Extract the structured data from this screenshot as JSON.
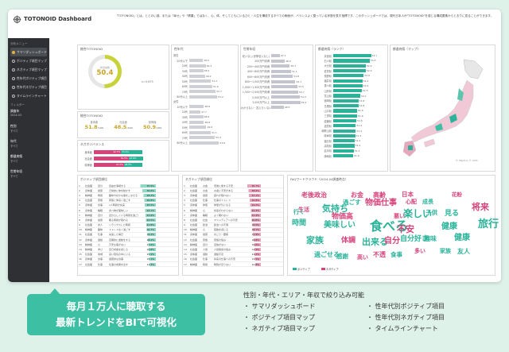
{
  "app": {
    "title": "TOTONOID Dashboard",
    "description": "「TOTONOID」とは、ととのい感、または「幸せ」や「健康」ではなく、心、体、そしてともにいるひと・人生を構成するすべての側面が、バランスよく整っている状態を表す指標です。このダッシュボードでは、現代日本人が\"TOTONOID\"を感じる構成要素からとおりに見ることができます。"
  },
  "sidebar": {
    "menu_title": "分析メニュー",
    "items": [
      {
        "label": "サマリダッシュボード",
        "active": true
      },
      {
        "label": "ポジティブ項目マップ"
      },
      {
        "label": "ネガティブ項目マップ"
      },
      {
        "label": "性年代ポジティブ項目"
      },
      {
        "label": "性年代ネガティブ項目"
      },
      {
        "label": "タイムラインチャート"
      }
    ],
    "filter_title": "フィルター",
    "filters": [
      {
        "label": "調査年",
        "value": "2024.03"
      },
      {
        "label": "性別",
        "value": "すべて"
      },
      {
        "label": "年代",
        "value": "すべて"
      },
      {
        "label": "都道府県",
        "value": "すべて"
      },
      {
        "label": "世帯年収",
        "value": "すべて"
      }
    ]
  },
  "overall": {
    "title": "総合TOTONOID",
    "gauge_label": "総合指数",
    "value": "50.4",
    "value_fraction": 0.504,
    "note": "n=9,675"
  },
  "score": {
    "title": "総合TOTONOID",
    "items": [
      {
        "label": "身体面",
        "value": "51.8",
        "unit": "/100"
      },
      {
        "label": "社会面",
        "value": "48.5",
        "unit": "/100"
      },
      {
        "label": "精神面",
        "value": "50.9",
        "unit": "/100"
      }
    ]
  },
  "balance": {
    "title": "ネガポジバランス",
    "rows": [
      {
        "label": "身体面",
        "neg": "42.7%",
        "pos": "33.1%",
        "neg_v": 42.7,
        "pos_v": 33.1
      },
      {
        "label": "社会面",
        "neg": "54.5%",
        "pos": "22.8%",
        "neg_v": 54.5,
        "pos_v": 22.8
      },
      {
        "label": "精神面",
        "neg": "47.2%",
        "pos": "28.6%",
        "neg_v": 47.2,
        "pos_v": 28.6
      }
    ]
  },
  "gender_age": {
    "title": "性年代",
    "groups": [
      {
        "label": "男性",
        "rows": [
          {
            "l": "20代以下",
            "v": "48.5"
          },
          {
            "l": "20代",
            "v": "49.4"
          },
          {
            "l": "30代",
            "v": "48.6"
          },
          {
            "l": "40代",
            "v": "49.2"
          },
          {
            "l": "50代",
            "v": "51.2"
          },
          {
            "l": "60代",
            "v": "51.6"
          },
          {
            "l": "70代",
            "v": "52.7"
          },
          {
            "l": "80代以上",
            "v": "53.2"
          }
        ]
      },
      {
        "label": "女性",
        "rows": [
          {
            "l": "20代以下",
            "v": "48.8"
          },
          {
            "l": "20代",
            "v": "47.7"
          },
          {
            "l": "30代",
            "v": "48.6"
          },
          {
            "l": "40代",
            "v": "48.8"
          },
          {
            "l": "50代",
            "v": "49.6"
          },
          {
            "l": "60代",
            "v": "51.1"
          },
          {
            "l": "70代",
            "v": "52.4"
          },
          {
            "l": "80代以上",
            "v": "53.8"
          }
        ]
      }
    ]
  },
  "income": {
    "title": "世帯年収",
    "rows": [
      {
        "l": "収入なし(世帯収入なし)",
        "v": "47.1"
      },
      {
        "l": "200万円未満",
        "v": "48.9"
      },
      {
        "l": "200〜400万円未満",
        "v": "50.7"
      },
      {
        "l": "400〜600万円未満",
        "v": "51.1"
      },
      {
        "l": "600〜800万円未満",
        "v": "51.8"
      },
      {
        "l": "800〜1,000万円未満",
        "v": "52.7"
      },
      {
        "l": "1,000〜1,500万円未満",
        "v": "53.5"
      },
      {
        "l": "1,500〜2,000万円未満",
        "v": "53.7"
      },
      {
        "l": "2,000万円以上",
        "v": "54.3"
      },
      {
        "l": "3,000万円以上",
        "v": "54.5"
      },
      {
        "l": "わからない・答えたくない",
        "v": "48.5"
      }
    ]
  },
  "prefecture_rank": {
    "title": "都道府県（ランク）",
    "rows": [
      {
        "p": "奈良県",
        "v": "53.7"
      },
      {
        "p": "石川県",
        "v": "53.5"
      },
      {
        "p": "大分県",
        "v": "52.9"
      },
      {
        "p": "佐賀県",
        "v": "52.9"
      },
      {
        "p": "長野県",
        "v": "52.6"
      },
      {
        "p": "福井県",
        "v": "52.4"
      },
      {
        "p": "香川県",
        "v": "52.4"
      },
      {
        "p": "山形県",
        "v": "52.3"
      },
      {
        "p": "富山県",
        "v": "52.1"
      },
      {
        "p": "宮崎県",
        "v": "51.8"
      },
      {
        "p": "島根県",
        "v": "51.8"
      },
      {
        "p": "山口県",
        "v": "51.6"
      },
      {
        "p": "三重県",
        "v": "51.6"
      },
      {
        "p": "愛媛県",
        "v": "51.5"
      },
      {
        "p": "滋賀県",
        "v": "51.4"
      },
      {
        "p": "和歌山県",
        "v": "51.4"
      },
      {
        "p": "岐阜県",
        "v": "51.3"
      },
      {
        "p": "福島県",
        "v": "51.2"
      },
      {
        "p": "高知県",
        "v": "51.2"
      },
      {
        "p": "岩手県",
        "v": "51.1"
      },
      {
        "p": "静岡県",
        "v": "51.0"
      }
    ]
  },
  "pref_map": {
    "title": "都道府県（マップ）",
    "credit": "© Mapbox © OSM"
  },
  "positive": {
    "title": "ポジティブ項目順位",
    "rows": [
      {
        "n": "1",
        "c": "社会面",
        "s": "自分",
        "t": "自由を満喫する",
        "p": "35.9%"
      },
      {
        "n": "2",
        "c": "身体面",
        "s": "健康",
        "t": "日常的に体を動かす",
        "p": "30.6%"
      },
      {
        "n": "3",
        "c": "精神面",
        "s": "時間",
        "t": "趣味や好きな事をこなせる",
        "p": "28.3%"
      },
      {
        "n": "4",
        "c": "社会面",
        "s": "家族",
        "t": "家族と仲良く過ごす",
        "p": "26.8%"
      },
      {
        "n": "5",
        "c": "身体面",
        "s": "食事",
        "t": "1人時間が充実",
        "p": "25.5%"
      },
      {
        "n": "6",
        "c": "身体面",
        "s": "睡眠",
        "t": "食べ物が美味しい",
        "p": "24.1%"
      },
      {
        "n": "7",
        "c": "精神面",
        "s": "自分",
        "t": "自分らしくいる時間を過ごせる",
        "p": "23.9%"
      },
      {
        "n": "8",
        "c": "身体面",
        "s": "健康",
        "t": "眠る時間が取れる",
        "p": "22.5%"
      },
      {
        "n": "9",
        "c": "社会面",
        "s": "友人",
        "t": "リラックスした時間",
        "p": "21.8%"
      },
      {
        "n": "10",
        "c": "精神面",
        "s": "趣味",
        "t": "ストレスなく過ごす",
        "p": "20.7%"
      },
      {
        "n": "11",
        "c": "社会面",
        "s": "仕事",
        "t": "充実した毎日",
        "p": "19.4%"
      },
      {
        "n": "12",
        "c": "身体面",
        "s": "運動",
        "t": "定期的に運動をする",
        "p": "18.2%"
      },
      {
        "n": "13",
        "c": "精神面",
        "s": "心",
        "t": "不安な事がない",
        "p": "17.6%"
      },
      {
        "n": "14",
        "c": "精神面",
        "s": "学び",
        "t": "自己成長を感じる",
        "p": "16.8%"
      },
      {
        "n": "15",
        "c": "社会面",
        "s": "地域",
        "t": "良い環境の中にいる",
        "p": "15.9%"
      },
      {
        "n": "16",
        "c": "身体面",
        "s": "食事",
        "t": "健康的な食事",
        "p": "15.1%"
      },
      {
        "n": "17",
        "c": "社会面",
        "s": "仕事",
        "t": "仕事の成果を出す",
        "p": "14.3%"
      }
    ]
  },
  "negative": {
    "title": "ネガティブ項目順位",
    "rows": [
      {
        "n": "1",
        "c": "社会面",
        "s": "お金",
        "t": "老後に関する不安",
        "p": "30.7%"
      },
      {
        "n": "2",
        "c": "社会面",
        "s": "お金",
        "t": "お金に不安がある",
        "p": "28.6%"
      },
      {
        "n": "3",
        "c": "身体面",
        "s": "健康",
        "t": "疲れが取れない",
        "p": "27.1%"
      },
      {
        "n": "4",
        "c": "社会面",
        "s": "仕事",
        "t": "仕事のストレス",
        "p": "25.8%"
      },
      {
        "n": "5",
        "c": "身体面",
        "s": "体型",
        "t": "体型が気になる",
        "p": "24.2%"
      },
      {
        "n": "6",
        "c": "精神面",
        "s": "心",
        "t": "将来がわからない",
        "p": "22.3%"
      },
      {
        "n": "7",
        "c": "身体面",
        "s": "睡眠",
        "t": "よく眠れない",
        "p": "21.4%"
      },
      {
        "n": "8",
        "c": "社会面",
        "s": "社会",
        "t": "マスメディアへの不安",
        "p": "20.8%"
      },
      {
        "n": "9",
        "c": "社会面",
        "s": "政治",
        "t": "政治への不満",
        "p": "19.5%"
      },
      {
        "n": "10",
        "c": "精神面",
        "s": "心",
        "t": "孤独を感じる",
        "p": "18.7%"
      },
      {
        "n": "11",
        "c": "身体面",
        "s": "健康",
        "t": "肩こり・腰痛",
        "p": "17.9%"
      },
      {
        "n": "12",
        "c": "社会面",
        "s": "家族",
        "t": "家族の悩み",
        "p": "16.8%"
      },
      {
        "n": "13",
        "c": "精神面",
        "s": "自分",
        "t": "自信がない",
        "p": "15.6%"
      },
      {
        "n": "14",
        "c": "社会面",
        "s": "人間",
        "t": "人間関係の悩み",
        "p": "14.9%"
      },
      {
        "n": "15",
        "c": "身体面",
        "s": "運動",
        "t": "運動不足",
        "p": "14.2%"
      },
      {
        "n": "16",
        "c": "社会面",
        "s": "仕事",
        "t": "将来の仕事への不安",
        "p": "13.5%"
      },
      {
        "n": "17",
        "c": "精神面",
        "s": "時間",
        "t": "時間が足りない",
        "p": "12.8%"
      }
    ]
  },
  "wordcloud": {
    "title": "FAQワードクラウド（2024.04調査時点）",
    "legend_pos": "ポジティブ",
    "legend_neg": "ネガティブ",
    "pos_color": "#2bb39a",
    "neg_color": "#d6437b",
    "words": [
      {
        "w": "老後政治",
        "c": "neg"
      },
      {
        "w": "お金",
        "c": "neg"
      },
      {
        "w": "高齢",
        "c": "neg"
      },
      {
        "w": "日本",
        "c": "neg"
      },
      {
        "w": "過ごす",
        "c": "pos"
      },
      {
        "w": "物価仕事",
        "c": "neg"
      },
      {
        "w": "心配",
        "c": "neg"
      },
      {
        "w": "成長",
        "c": "pos"
      },
      {
        "w": "花粉",
        "c": "neg"
      },
      {
        "w": "生活",
        "c": "neg"
      },
      {
        "w": "気持ち",
        "c": "pos"
      },
      {
        "w": "楽しい",
        "c": "pos"
      },
      {
        "w": "行く",
        "c": "pos"
      },
      {
        "w": "物価高",
        "c": "neg"
      },
      {
        "w": "悪い",
        "c": "neg"
      },
      {
        "w": "子供",
        "c": "pos"
      },
      {
        "w": "見る",
        "c": "pos"
      },
      {
        "w": "将来",
        "c": "neg"
      },
      {
        "w": "時間",
        "c": "pos"
      },
      {
        "w": "美味しい",
        "c": "pos"
      },
      {
        "w": "食べる",
        "c": "pos"
      },
      {
        "w": "不安",
        "c": "neg"
      },
      {
        "w": "健康",
        "c": "pos"
      },
      {
        "w": "旅行",
        "c": "pos"
      },
      {
        "w": "家族",
        "c": "pos"
      },
      {
        "w": "体調",
        "c": "neg"
      },
      {
        "w": "出来る",
        "c": "pos"
      },
      {
        "w": "自分",
        "c": "neg"
      },
      {
        "w": "自分好き",
        "c": "pos"
      },
      {
        "w": "趣味",
        "c": "pos"
      },
      {
        "w": "健康",
        "c": "pos"
      },
      {
        "w": "過ごせる",
        "c": "pos"
      },
      {
        "w": "食事",
        "c": "pos"
      },
      {
        "w": "不透",
        "c": "neg"
      },
      {
        "w": "多い",
        "c": "neg"
      },
      {
        "w": "家族",
        "c": "pos"
      },
      {
        "w": "友人",
        "c": "pos"
      },
      {
        "w": "感謝",
        "c": "pos"
      },
      {
        "w": "高い",
        "c": "neg"
      }
    ]
  },
  "banner": {
    "line1": "毎月１万人に聴取する",
    "line2": "最新トレンドをBIで可視化"
  },
  "features": {
    "top": "性別・年代・エリア・年収で絞り込み可能",
    "items": [
      "・ サマリダッシュボード",
      "・ 性年代別ポジティブ項目",
      "・ ポジティブ項目マップ",
      "・ 性年代別ネガティブ項目",
      "・ ネガティブ項目マップ",
      "・ タイムラインチャート"
    ]
  }
}
